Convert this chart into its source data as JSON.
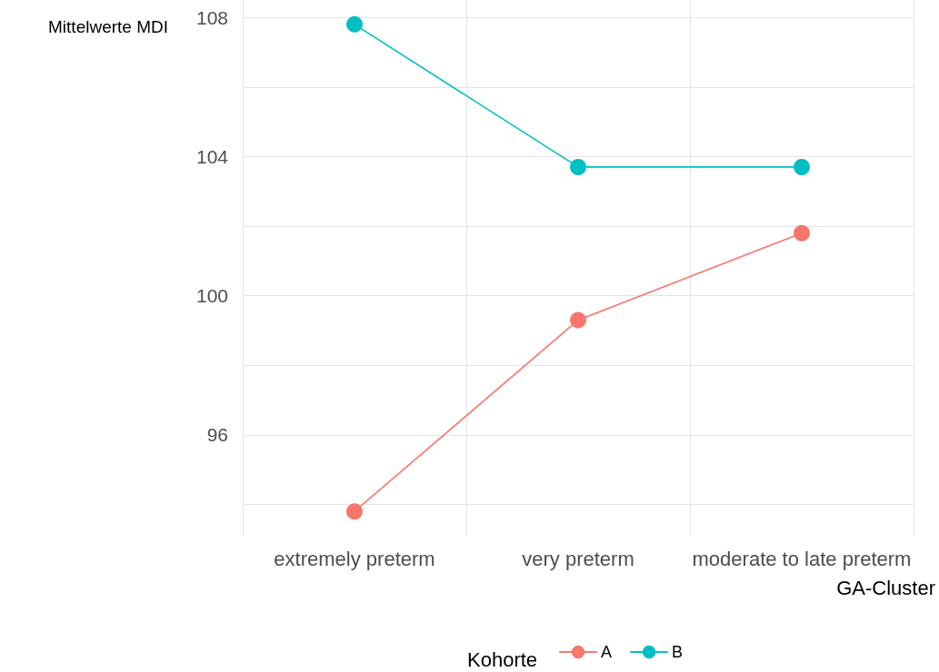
{
  "chart_data": {
    "type": "line",
    "ylabel": "Mittelwerte MDI",
    "xlabel": "GA-Cluster",
    "legend_title": "Kohorte",
    "categories": [
      "extremely preterm",
      "very preterm",
      "moderate to late preterm"
    ],
    "series": [
      {
        "name": "A",
        "color": "#f8766d",
        "values": [
          93.8,
          99.3,
          101.8
        ]
      },
      {
        "name": "B",
        "color": "#00bfc4",
        "values": [
          107.8,
          103.7,
          103.7
        ]
      }
    ],
    "ylim": [
      93.1,
      108.5
    ],
    "yticks": [
      {
        "value": 94,
        "label": null
      },
      96,
      {
        "value": 98,
        "label": null
      },
      100,
      {
        "value": 102,
        "label": null
      },
      104,
      {
        "value": 106,
        "label": null
      },
      108
    ],
    "grid": true,
    "legend": "bottom",
    "marker": "circle",
    "line_style": "solid"
  }
}
